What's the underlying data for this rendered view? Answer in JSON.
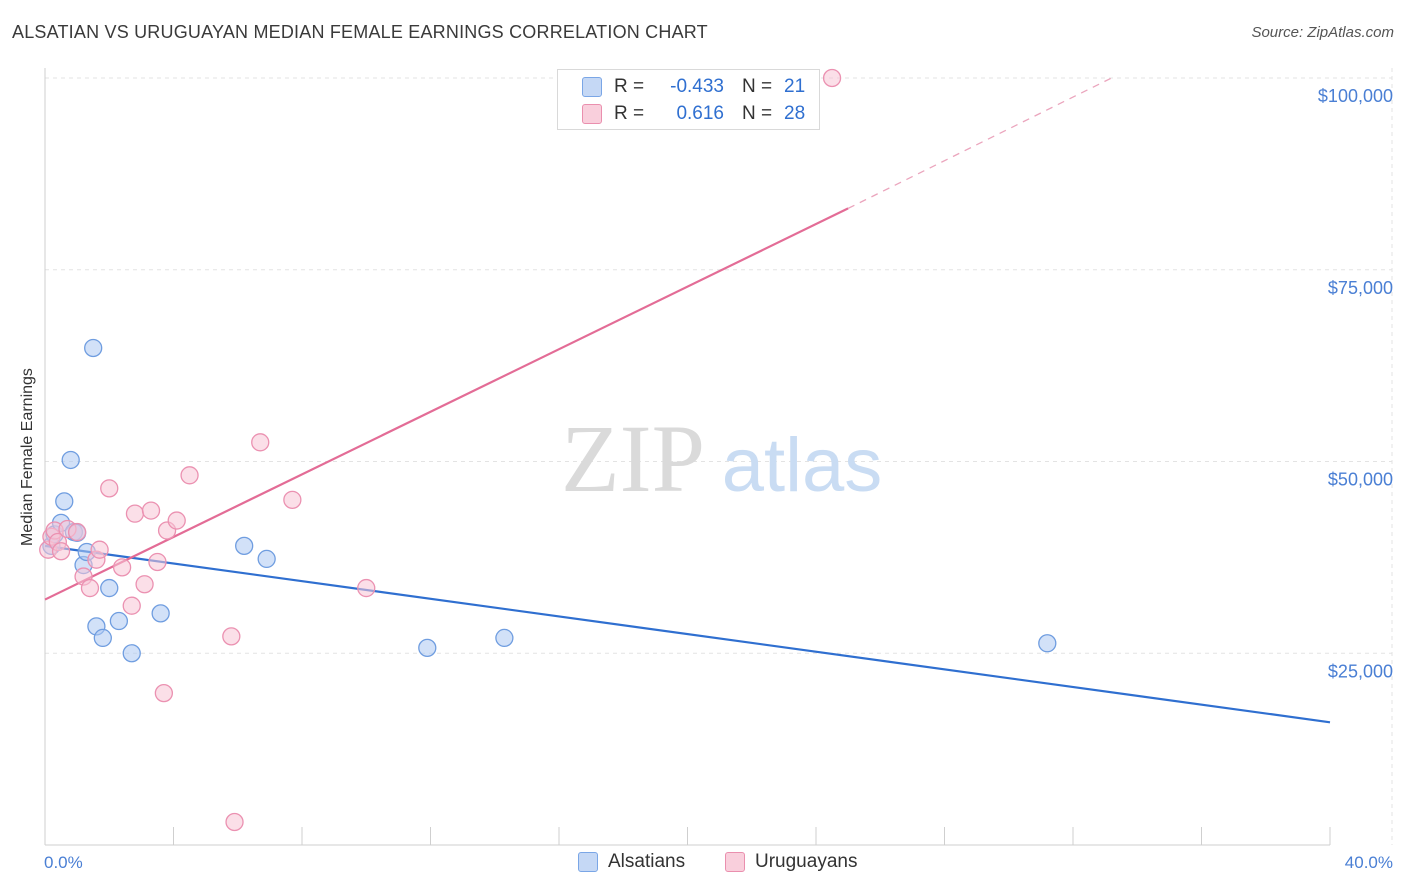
{
  "title": "ALSATIAN VS URUGUAYAN MEDIAN FEMALE EARNINGS CORRELATION CHART",
  "source": "Source: ZipAtlas.com",
  "watermark": {
    "zip": "ZIP",
    "atlas": "atlas"
  },
  "legend": {
    "alsatians": {
      "r_label": "R =",
      "r_value": "-0.433",
      "n_label": "N =",
      "n_value": "21"
    },
    "uruguayans": {
      "r_label": "R =",
      "r_value": "0.616",
      "n_label": "N =",
      "n_value": "28"
    }
  },
  "bottom_legend": {
    "alsatians": "Alsatians",
    "uruguayans": "Uruguayans"
  },
  "colors": {
    "blue": "#2f6fd0",
    "pink": "#e36c96",
    "blue_fill": "#c5d8f5",
    "pink_fill": "#f9cfdc"
  },
  "chart_data": {
    "type": "scatter",
    "title": "ALSATIAN VS URUGUAYAN MEDIAN FEMALE EARNINGS CORRELATION CHART",
    "xlabel": "",
    "ylabel": "Median Female Earnings",
    "xlim": [
      0,
      40
    ],
    "ylim": [
      0,
      102000
    ],
    "x_tick_labels": {
      "min": "0.0%",
      "max": "40.0%"
    },
    "y_ticks": [
      {
        "value": 25000,
        "label": "$25,000"
      },
      {
        "value": 50000,
        "label": "$50,000"
      },
      {
        "value": 75000,
        "label": "$75,000"
      },
      {
        "value": 100000,
        "label": "$100,000"
      }
    ],
    "series": [
      {
        "name": "Alsatians",
        "r": -0.433,
        "n": 21,
        "points": [
          [
            0.2,
            39000
          ],
          [
            0.3,
            40500
          ],
          [
            0.5,
            42000
          ],
          [
            0.6,
            44800
          ],
          [
            0.8,
            50200
          ],
          [
            0.9,
            40800
          ],
          [
            1.0,
            40700
          ],
          [
            1.2,
            36500
          ],
          [
            1.3,
            38200
          ],
          [
            1.5,
            64800
          ],
          [
            1.6,
            28500
          ],
          [
            1.8,
            27000
          ],
          [
            2.0,
            33500
          ],
          [
            2.3,
            29200
          ],
          [
            2.7,
            25000
          ],
          [
            3.6,
            30200
          ],
          [
            6.2,
            39000
          ],
          [
            6.9,
            37300
          ],
          [
            11.9,
            25700
          ],
          [
            14.3,
            27000
          ],
          [
            31.2,
            26300
          ]
        ],
        "trend": {
          "x0": 0,
          "y0": 39000,
          "x1": 40,
          "y1": 16000
        }
      },
      {
        "name": "Uruguayans",
        "r": 0.616,
        "n": 28,
        "points": [
          [
            0.1,
            38500
          ],
          [
            0.2,
            40200
          ],
          [
            0.3,
            41000
          ],
          [
            0.4,
            39500
          ],
          [
            0.5,
            38300
          ],
          [
            0.7,
            41200
          ],
          [
            1.0,
            40800
          ],
          [
            1.2,
            35000
          ],
          [
            1.4,
            33500
          ],
          [
            1.6,
            37200
          ],
          [
            1.7,
            38500
          ],
          [
            2.0,
            46500
          ],
          [
            2.4,
            36200
          ],
          [
            2.7,
            31200
          ],
          [
            2.8,
            43200
          ],
          [
            3.1,
            34000
          ],
          [
            3.3,
            43600
          ],
          [
            3.5,
            36900
          ],
          [
            3.7,
            19800
          ],
          [
            3.8,
            41000
          ],
          [
            4.1,
            42300
          ],
          [
            4.5,
            48200
          ],
          [
            5.8,
            27200
          ],
          [
            5.9,
            3000
          ],
          [
            6.7,
            52500
          ],
          [
            7.7,
            45000
          ],
          [
            10.0,
            33500
          ],
          [
            24.5,
            100000
          ]
        ],
        "trend": {
          "x0": 0,
          "y0": 32000,
          "x1": 25,
          "y1": 83000,
          "dash_x1": 33.2,
          "dash_y1": 100000
        }
      }
    ]
  }
}
